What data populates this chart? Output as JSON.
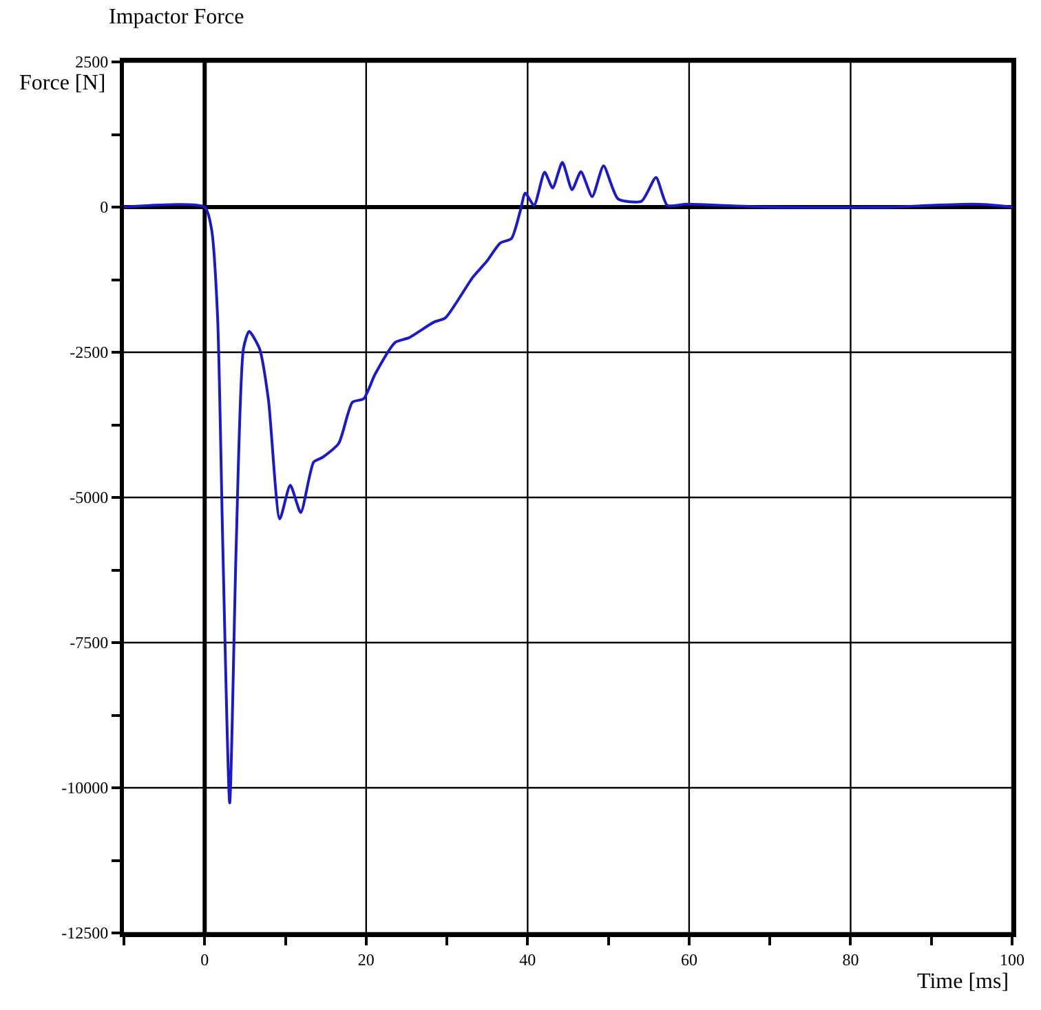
{
  "chart_data": {
    "type": "line",
    "title": "Impactor Force",
    "xlabel": "Time [ms]",
    "ylabel": "Force [N]",
    "x": [
      -10,
      0,
      0.85,
      1.6,
      2.25,
      3.1,
      3.9,
      4.8,
      5.5,
      6.8,
      7.9,
      9.3,
      10.6,
      11.9,
      13.5,
      14.6,
      16.6,
      18.3,
      19.7,
      21.1,
      23.6,
      25.3,
      28.4,
      29.8,
      33.2,
      34.9,
      36.6,
      38,
      39.1,
      39.7,
      40.8,
      42.1,
      43.1,
      44.3,
      45.5,
      46.6,
      48,
      49.4,
      51.2,
      54.1,
      55.9,
      57.3,
      59.7,
      70,
      85,
      90,
      95,
      97,
      100
    ],
    "series": [
      {
        "color": "#1a1acc",
        "values": [
          0,
          0,
          -380,
          -1890,
          -5860,
          -10260,
          -5860,
          -2440,
          -2140,
          -2440,
          -3320,
          -5370,
          -4790,
          -5260,
          -4390,
          -4310,
          -4070,
          -3360,
          -3300,
          -2880,
          -2330,
          -2250,
          -1980,
          -1910,
          -1210,
          -940,
          -620,
          -540,
          -60,
          240,
          30,
          600,
          330,
          770,
          300,
          610,
          180,
          710,
          140,
          100,
          510,
          30,
          50,
          0,
          0,
          30,
          50,
          40,
          0
        ]
      }
    ],
    "xlim": [
      -10,
      100
    ],
    "ylim": [
      -12500,
      2500
    ],
    "xticks": [
      {
        "value": -10,
        "label": null
      },
      0,
      {
        "value": 10,
        "label": null
      },
      20,
      {
        "value": 30,
        "label": null
      },
      40,
      {
        "value": 50,
        "label": null
      },
      60,
      {
        "value": 70,
        "label": null
      },
      80,
      {
        "value": 90,
        "label": null
      },
      100
    ],
    "yticks": [
      -12500,
      {
        "value": -11250,
        "label": null
      },
      -10000,
      {
        "value": -8750,
        "label": null
      },
      -7500,
      {
        "value": -6250,
        "label": null
      },
      -5000,
      {
        "value": -3750,
        "label": null
      },
      -2500,
      {
        "value": -1250,
        "label": null
      },
      0,
      {
        "value": 1250,
        "label": null
      },
      2500
    ],
    "grid": true,
    "legend": false,
    "marker": "none",
    "line_style": "solid"
  }
}
